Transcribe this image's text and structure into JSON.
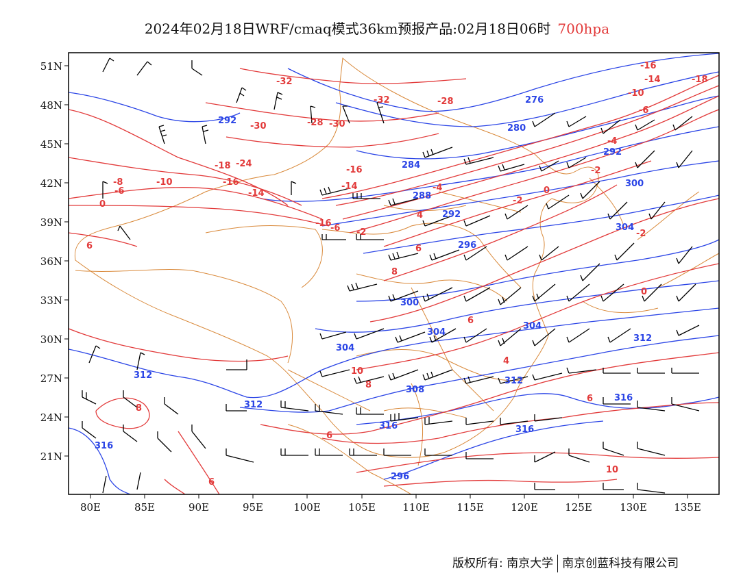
{
  "title": {
    "main": "2024年02月18日WRF/cmaq模式36km预报产品:02月18日06时",
    "level": "700hpa"
  },
  "colors": {
    "geopotential": "#2b45e6",
    "temperature": "#e23a3a",
    "boundary": "#d9893a",
    "wind_barb": "#000000",
    "frame": "#000000"
  },
  "axes": {
    "lon_ticks": [
      "80E",
      "85E",
      "90E",
      "95E",
      "100E",
      "105E",
      "110E",
      "115E",
      "120E",
      "125E",
      "130E",
      "135E"
    ],
    "lat_ticks": [
      "51N",
      "48N",
      "45N",
      "42N",
      "39N",
      "36N",
      "33N",
      "30N",
      "27N",
      "24N",
      "21N"
    ],
    "lon_range": [
      78,
      138
    ],
    "lat_range": [
      18,
      52
    ]
  },
  "geopotential_labels": [
    "276",
    "280",
    "284",
    "288",
    "292",
    "292",
    "292",
    "296",
    "300",
    "300",
    "304",
    "304",
    "304",
    "308",
    "312",
    "312",
    "312",
    "312",
    "316",
    "316",
    "316",
    "316",
    "304",
    "296"
  ],
  "temperature_labels": [
    "-32",
    "-32",
    "-30",
    "-30",
    "-28",
    "-28",
    "-24",
    "-18",
    "-16",
    "-16",
    "-16",
    "-14",
    "-14",
    "-14",
    "-10",
    "-10",
    "-8",
    "-6",
    "-6",
    "-6",
    "-4",
    "-4",
    "-2",
    "-2",
    "-2",
    "-2",
    "0",
    "0",
    "0",
    "-18",
    "-16",
    "4",
    "4",
    "6",
    "6",
    "6",
    "6",
    "6",
    "8",
    "8",
    "10",
    "10",
    "8",
    "6"
  ],
  "footer": {
    "left": "版权所有: 南京大学",
    "right": "南京创蓝科技有限公司"
  }
}
